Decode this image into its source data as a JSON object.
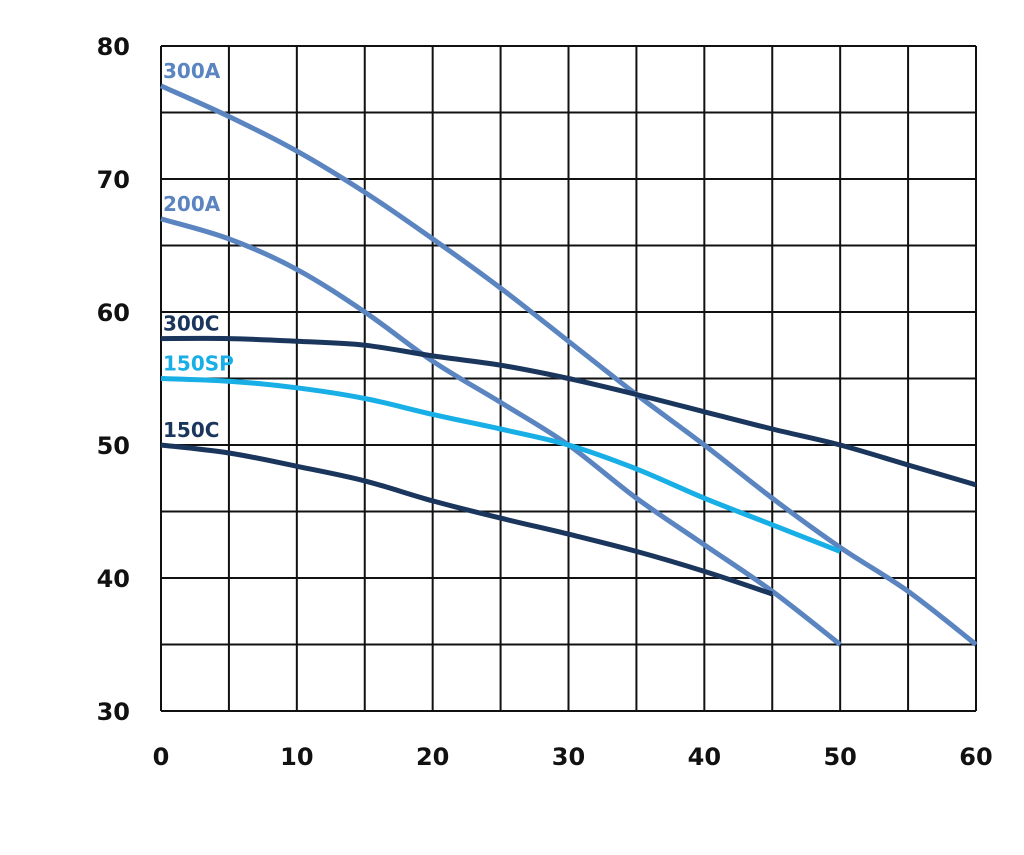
{
  "chart_data": {
    "type": "line",
    "title": "",
    "xlabel": "",
    "ylabel": "",
    "xlim": [
      0,
      60
    ],
    "ylim": [
      30,
      80
    ],
    "x_ticks": [
      "0",
      "10",
      "20",
      "30",
      "40",
      "50",
      "60"
    ],
    "y_ticks": [
      "30",
      "40",
      "50",
      "60",
      "70",
      "80"
    ],
    "grid": true,
    "legend": "none",
    "series": [
      {
        "name": "300A",
        "color": "#5b85c0",
        "points": [
          [
            0,
            77
          ],
          [
            5,
            74.7
          ],
          [
            10,
            72.1
          ],
          [
            15,
            69
          ],
          [
            20,
            65.5
          ],
          [
            25,
            61.8
          ],
          [
            30,
            57.8
          ],
          [
            35,
            53.8
          ],
          [
            40,
            50
          ],
          [
            45,
            46
          ],
          [
            50,
            42.3
          ],
          [
            55,
            39
          ],
          [
            60,
            35
          ]
        ]
      },
      {
        "name": "200A",
        "color": "#5b85c0",
        "points": [
          [
            0,
            67
          ],
          [
            5,
            65.5
          ],
          [
            10,
            63.2
          ],
          [
            15,
            60
          ],
          [
            20,
            56.3
          ],
          [
            25,
            53.2
          ],
          [
            30,
            50
          ],
          [
            35,
            46
          ],
          [
            40,
            42.5
          ],
          [
            45,
            39
          ],
          [
            50,
            35
          ]
        ]
      },
      {
        "name": "300C",
        "color": "#1b365d",
        "points": [
          [
            0,
            58
          ],
          [
            5,
            58
          ],
          [
            10,
            57.8
          ],
          [
            15,
            57.5
          ],
          [
            20,
            56.7
          ],
          [
            25,
            56
          ],
          [
            30,
            55
          ],
          [
            35,
            53.8
          ],
          [
            40,
            52.5
          ],
          [
            45,
            51.2
          ],
          [
            50,
            50
          ],
          [
            55,
            48.5
          ],
          [
            60,
            47
          ]
        ]
      },
      {
        "name": "150SP",
        "color": "#18aee6",
        "points": [
          [
            0,
            55
          ],
          [
            5,
            54.8
          ],
          [
            10,
            54.3
          ],
          [
            15,
            53.5
          ],
          [
            20,
            52.3
          ],
          [
            25,
            51.2
          ],
          [
            30,
            50
          ],
          [
            35,
            48.2
          ],
          [
            40,
            46
          ],
          [
            45,
            44
          ],
          [
            50,
            42
          ]
        ]
      },
      {
        "name": "150C",
        "color": "#1b365d",
        "points": [
          [
            0,
            50
          ],
          [
            5,
            49.4
          ],
          [
            10,
            48.4
          ],
          [
            15,
            47.3
          ],
          [
            20,
            45.8
          ],
          [
            25,
            44.5
          ],
          [
            30,
            43.3
          ],
          [
            35,
            42
          ],
          [
            40,
            40.5
          ],
          [
            45,
            38.8
          ]
        ]
      }
    ]
  }
}
